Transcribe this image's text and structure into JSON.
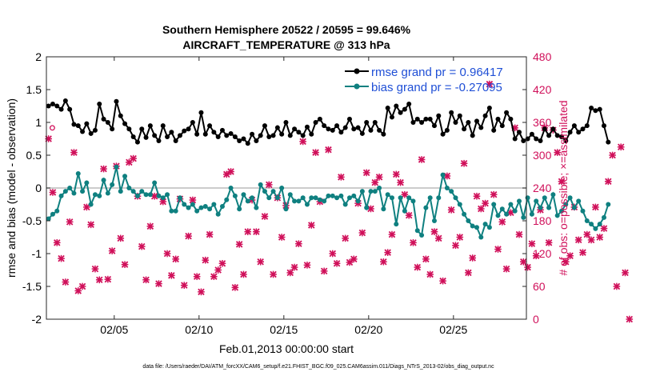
{
  "chart_data": {
    "type": "line",
    "title": "Southern Hemisphere 20522 / 20595 = 99.646%",
    "subtitle": "AIRCRAFT_TEMPERATURE @ 313 hPa",
    "xlabel": "Feb.01,2013 00:00:00 start",
    "ylabel_left": "rmse and bias (model - observation)",
    "ylabel_right": "# of obs: o=possible; ×=assimilated",
    "footnote": "data file: /Users/raeder/DAI/ATM_forcXX/CAM6_setup/f.e21.FHIST_BGC.f09_025.CAM6assim.011/Diags_NTrS_2013-02/obs_diag_output.nc",
    "xlim": [
      1.0,
      29.3
    ],
    "xticks": [
      5,
      10,
      15,
      20,
      25
    ],
    "xtick_labels": [
      "02/05",
      "02/10",
      "02/15",
      "02/20",
      "02/25"
    ],
    "ylim_left": [
      -2,
      2
    ],
    "yticks_left": [
      "-2",
      "-1.5",
      "-1",
      "-0.5",
      "0",
      "0.5",
      "1",
      "1.5",
      "2"
    ],
    "ylim_right": [
      0,
      480
    ],
    "yticks_right": [
      "0",
      "60",
      "120",
      "180",
      "240",
      "300",
      "360",
      "420",
      "480"
    ],
    "zero_line": 0,
    "legend_placement": "top-right",
    "colors": {
      "rmse": "#000000",
      "bias": "#0f8080",
      "count": "#d0105a",
      "axis_right": "#d0105a",
      "legend_text": "#1f4fd6",
      "zero_line": "#bbbbbb"
    },
    "series": [
      {
        "name": "rmse grand pr = 0.96417",
        "x_start": 1.125,
        "x_step": 0.25,
        "values": [
          1.25,
          1.28,
          1.25,
          1.2,
          1.33,
          1.2,
          0.97,
          0.95,
          0.86,
          0.98,
          0.83,
          0.88,
          1.28,
          1.05,
          1.0,
          0.9,
          1.32,
          1.1,
          0.98,
          0.9,
          0.78,
          0.7,
          0.9,
          0.77,
          0.95,
          0.8,
          0.72,
          0.95,
          0.78,
          0.85,
          0.72,
          0.8,
          0.87,
          0.9,
          1.0,
          0.82,
          1.15,
          0.82,
          0.95,
          0.85,
          0.78,
          0.88,
          0.8,
          0.83,
          0.78,
          0.72,
          0.75,
          0.68,
          0.82,
          0.72,
          0.8,
          0.95,
          0.78,
          0.8,
          0.92,
          0.82,
          1.0,
          0.8,
          0.9,
          0.85,
          0.8,
          0.93,
          0.82,
          1.0,
          1.05,
          0.95,
          0.9,
          0.88,
          0.95,
          0.85,
          0.92,
          1.05,
          0.9,
          0.92,
          0.83,
          1.0,
          0.88,
          1.0,
          0.88,
          0.82,
          1.22,
          1.08,
          1.25,
          1.15,
          1.2,
          1.28,
          1.0,
          1.05,
          1.0,
          1.05,
          1.05,
          0.95,
          1.1,
          0.82,
          0.88,
          1.15,
          1.0,
          1.1,
          0.9,
          1.0,
          0.8,
          1.02,
          0.92,
          1.1,
          1.22,
          0.88,
          1.05,
          0.95,
          1.15,
          1.05,
          0.75,
          0.85,
          0.72,
          0.75,
          0.82,
          0.75,
          0.72,
          0.9,
          0.8,
          0.9,
          0.8,
          0.78,
          0.72,
          0.85,
          0.95,
          0.85,
          0.9,
          0.95,
          1.22,
          1.18,
          1.2,
          0.95,
          0.7
        ]
      },
      {
        "name": "bias grand pr = -0.27095",
        "x_start": 1.125,
        "x_step": 0.25,
        "values": [
          -0.47,
          -0.4,
          -0.35,
          -0.12,
          -0.05,
          0.0,
          -0.08,
          0.22,
          -0.05,
          0.08,
          -0.25,
          -0.1,
          -0.12,
          0.12,
          -0.08,
          0.05,
          0.32,
          -0.05,
          0.18,
          0.0,
          -0.05,
          -0.12,
          -0.05,
          -0.1,
          -0.1,
          0.08,
          -0.12,
          -0.15,
          -0.1,
          -0.35,
          -0.35,
          -0.15,
          -0.25,
          -0.3,
          -0.25,
          -0.35,
          -0.3,
          -0.28,
          -0.32,
          -0.25,
          -0.4,
          -0.28,
          -0.18,
          0.0,
          -0.12,
          -0.32,
          -0.1,
          -0.2,
          -0.15,
          -0.3,
          0.05,
          -0.05,
          -0.15,
          -0.05,
          -0.15,
          0.0,
          -0.32,
          -0.1,
          -0.2,
          -0.2,
          -0.15,
          -0.25,
          -0.15,
          -0.15,
          -0.18,
          -0.2,
          -0.12,
          -0.12,
          -0.15,
          -0.12,
          -0.25,
          -0.15,
          -0.12,
          -0.2,
          -0.05,
          -0.3,
          -0.05,
          -0.05,
          0.0,
          -0.32,
          -0.1,
          -0.15,
          -0.55,
          -0.15,
          -0.35,
          -0.15,
          -0.2,
          -0.65,
          -0.72,
          -0.3,
          -0.15,
          -0.5,
          -0.15,
          0.2,
          0.0,
          -0.05,
          -0.15,
          -0.25,
          -0.4,
          -0.5,
          -0.58,
          -0.6,
          -0.75,
          -0.55,
          -0.6,
          -0.25,
          -0.42,
          -0.32,
          -0.4,
          -0.25,
          -0.35,
          -0.2,
          -0.45,
          -0.15,
          -0.4,
          -0.2,
          -0.3,
          -0.15,
          -0.3,
          -0.1,
          -0.42,
          -0.35,
          -0.25,
          -0.15,
          -0.3,
          -0.2,
          -0.35,
          -0.5,
          -0.55,
          -0.62,
          -0.55,
          -0.45,
          -0.25
        ]
      }
    ],
    "counts_assimilated": {
      "x_start": 1.125,
      "x_step": 0.25,
      "values": [
        330,
        232,
        140,
        111,
        68,
        178,
        305,
        52,
        60,
        205,
        173,
        92,
        72,
        275,
        73,
        125,
        280,
        148,
        100,
        287,
        294,
        225,
        133,
        72,
        170,
        225,
        65,
        215,
        120,
        80,
        110,
        220,
        62,
        152,
        218,
        78,
        50,
        108,
        155,
        78,
        90,
        102,
        265,
        270,
        58,
        137,
        82,
        160,
        218,
        160,
        105,
        188,
        246,
        82,
        222,
        150,
        208,
        85,
        95,
        138,
        325,
        99,
        172,
        305,
        215,
        88,
        310,
        120,
        102,
        260,
        148,
        104,
        110,
        212,
        158,
        268,
        202,
        250,
        260,
        105,
        122,
        155,
        265,
        250,
        228,
        190,
        140,
        95,
        292,
        110,
        82,
        160,
        148,
        70,
        262,
        200,
        135,
        150,
        285,
        85,
        112,
        225,
        202,
        212,
        430,
        228,
        128,
        178,
        92,
        195,
        350,
        155,
        105,
        95,
        138,
        116,
        200,
        350,
        140,
        346,
        305,
        252,
        105,
        116,
        205,
        145,
        122,
        155,
        145,
        205,
        150,
        166,
        252,
        300,
        60,
        315,
        85,
        0
      ]
    },
    "legend": [
      "rmse grand pr = 0.96417",
      "bias grand pr = -0.27095"
    ],
    "possible_marker_note": "o"
  }
}
